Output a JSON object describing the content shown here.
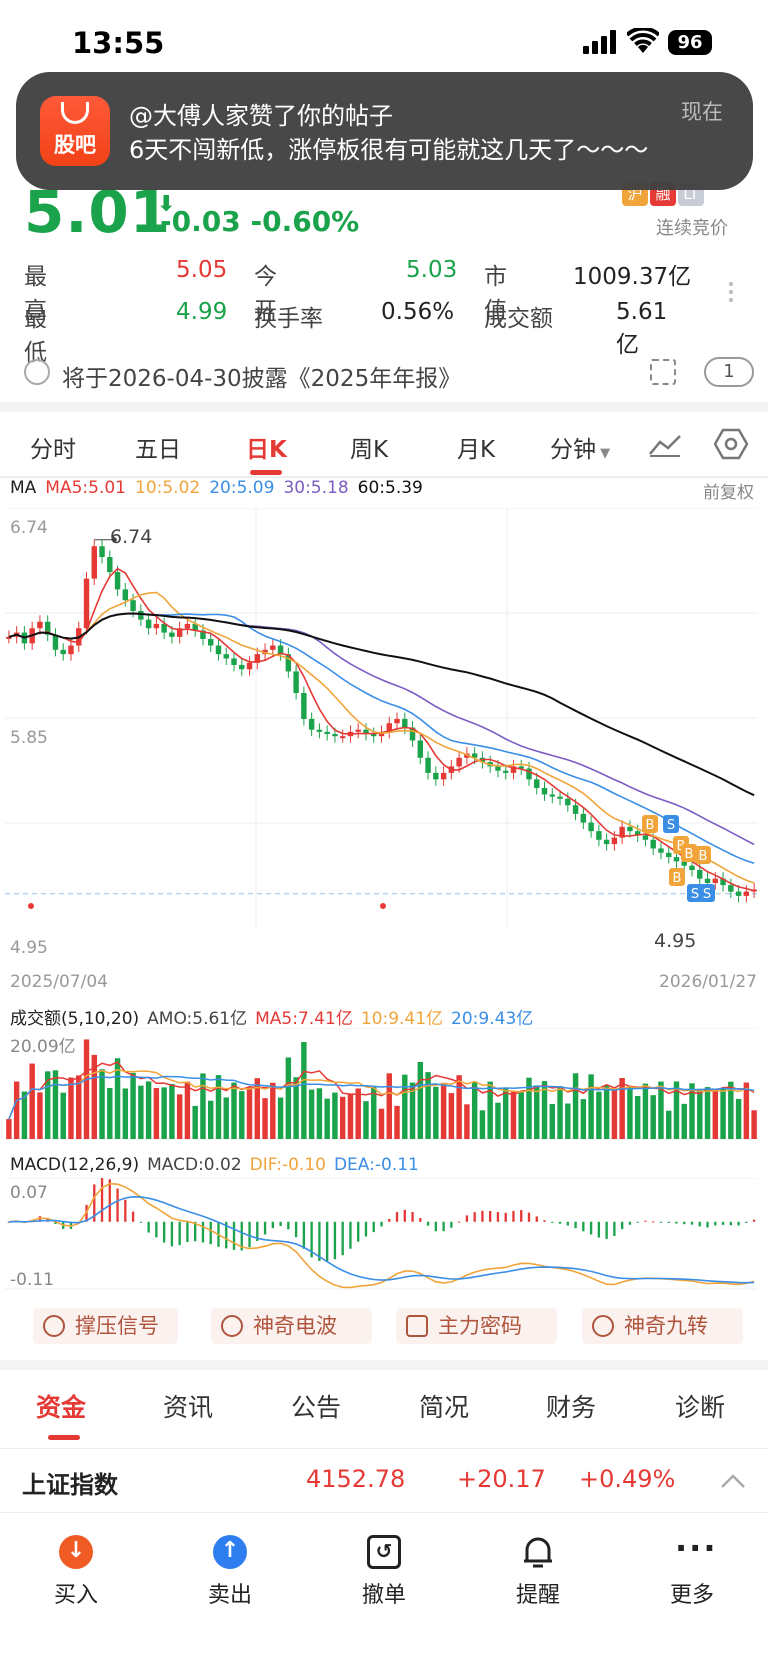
{
  "status": {
    "time": "13:55",
    "battery": "96"
  },
  "notification": {
    "app_label": "股吧",
    "title": "@大傅人家赞了你的帖子",
    "body": "6天不闯新低，涨停板很有可能就这几天了～～～",
    "time": "现在"
  },
  "quote": {
    "price": "5.01",
    "change": "-0.03",
    "change_pct": "-0.60%",
    "tags": [
      "沪",
      "融",
      "LT"
    ],
    "bid_mode": "连续竞价",
    "rows": [
      {
        "l1": "最　高",
        "v1": "5.05",
        "l2": "今　开",
        "v2": "5.03",
        "l3": "市　值",
        "v3": "1009.37亿"
      },
      {
        "l1": "最　低",
        "v1": "4.99",
        "l2": "换手率",
        "v2": "0.56%",
        "l3": "成交额",
        "v3": "5.61亿"
      }
    ],
    "colors": {
      "up": "#e53935",
      "down": "#1aa34a"
    }
  },
  "disclosure": {
    "text": "将于2026-04-30披露《2025年年报》",
    "count": "1"
  },
  "tabs": [
    {
      "label": "分时"
    },
    {
      "label": "五日"
    },
    {
      "label": "日K"
    },
    {
      "label": "周K"
    },
    {
      "label": "月K"
    },
    {
      "label": "分钟"
    }
  ],
  "ma_legend": {
    "prefix": "MA",
    "ma5": "MA5:5.01",
    "ma10": "10:5.02",
    "ma20": "20:5.09",
    "ma30": "30:5.18",
    "ma60": "60:5.39",
    "adjust": "前复权",
    "colors": {
      "ma5": "#e53935",
      "ma10": "#f0a43a",
      "ma20": "#3a8ee6",
      "ma30": "#7b5cc4",
      "ma60": "#111111"
    }
  },
  "chart_data": {
    "type": "candlestick",
    "y_ticks": [
      "6.74",
      "5.85",
      "4.95"
    ],
    "high_label": "6.74",
    "low_label": "4.95",
    "start_date": "2025/07/04",
    "end_date": "2026/01/27",
    "ylim": [
      4.95,
      6.74
    ],
    "closes": [
      6.18,
      6.2,
      6.15,
      6.22,
      6.25,
      6.19,
      6.12,
      6.1,
      6.14,
      6.22,
      6.45,
      6.6,
      6.55,
      6.48,
      6.4,
      6.35,
      6.3,
      6.26,
      6.22,
      6.24,
      6.2,
      6.18,
      6.22,
      6.24,
      6.21,
      6.17,
      6.14,
      6.1,
      6.08,
      6.05,
      6.03,
      6.06,
      6.1,
      6.12,
      6.14,
      6.1,
      6.02,
      5.92,
      5.8,
      5.75,
      5.74,
      5.73,
      5.72,
      5.72,
      5.74,
      5.75,
      5.73,
      5.72,
      5.74,
      5.78,
      5.8,
      5.76,
      5.7,
      5.62,
      5.55,
      5.52,
      5.55,
      5.58,
      5.62,
      5.64,
      5.62,
      5.6,
      5.58,
      5.56,
      5.55,
      5.58,
      5.57,
      5.52,
      5.48,
      5.45,
      5.44,
      5.43,
      5.4,
      5.36,
      5.32,
      5.28,
      5.24,
      5.22,
      5.25,
      5.3,
      5.28,
      5.26,
      5.24,
      5.2,
      5.18,
      5.16,
      5.14,
      5.12,
      5.1,
      5.06,
      5.04,
      5.06,
      5.03,
      5.0,
      4.98,
      5.0,
      5.01
    ],
    "volume": {
      "legend": "成交额(5,10,20)",
      "amo": "AMO:5.61亿",
      "ma5": "MA5:7.41亿",
      "ma10": "10:9.41亿",
      "ma20": "20:9.43亿",
      "top": "20.09亿"
    },
    "macd": {
      "legend": "MACD(12,26,9)",
      "macd": "MACD:0.02",
      "dif": "DIF:-0.10",
      "dea": "DEA:-0.11",
      "top": "0.07",
      "bottom": "-0.11"
    }
  },
  "signals": [
    "撑压信号",
    "神奇电波",
    "主力密码",
    "神奇九转"
  ],
  "bottom_tabs": [
    "资金",
    "资讯",
    "公告",
    "简况",
    "财务",
    "诊断"
  ],
  "index": {
    "name": "上证指数",
    "value": "4152.78",
    "change": "+20.17",
    "pct": "+0.49%"
  },
  "toolbar": [
    "买入",
    "卖出",
    "撤单",
    "提醒",
    "更多"
  ]
}
